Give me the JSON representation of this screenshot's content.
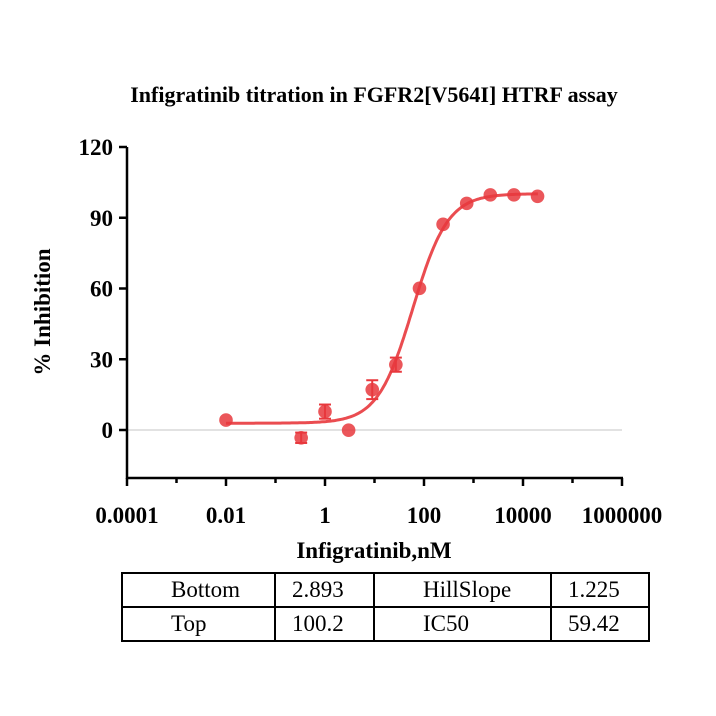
{
  "chart_data": {
    "type": "scatter",
    "title": "Infigratinib titration in FGFR2[V564I] HTRF assay",
    "xlabel": "Infigratinib,nM",
    "ylabel": "% Inhibition",
    "xscale": "log",
    "xlim": [
      0.0001,
      1000000
    ],
    "ylim": [
      -20,
      120
    ],
    "xticks": [
      "0.0001",
      "0.01",
      "1",
      "100",
      "10000",
      "1000000"
    ],
    "yticks": [
      "0",
      "30",
      "60",
      "90",
      "120"
    ],
    "grid": false,
    "color": "#e8383d",
    "points": [
      {
        "x": 0.01,
        "y": 4.2,
        "err": 0
      },
      {
        "x": 0.33,
        "y": -3.3,
        "err": 2.2
      },
      {
        "x": 1,
        "y": 7.8,
        "err": 3
      },
      {
        "x": 3,
        "y": -0.1,
        "err": 0
      },
      {
        "x": 9,
        "y": 17.1,
        "err": 4
      },
      {
        "x": 27,
        "y": 27.7,
        "err": 3
      },
      {
        "x": 81,
        "y": 60.1,
        "err": 0
      },
      {
        "x": 243,
        "y": 87.2,
        "err": 0
      },
      {
        "x": 729,
        "y": 96.1,
        "err": 0
      },
      {
        "x": 2187,
        "y": 99.7,
        "err": 0
      },
      {
        "x": 6561,
        "y": 99.7,
        "err": 0
      },
      {
        "x": 19683,
        "y": 99.1,
        "err": 0
      }
    ],
    "fit": {
      "model": "4PL",
      "bottom": 2.893,
      "top": 100.2,
      "ic50": 59.42,
      "hillslope": 1.225,
      "range": [
        0.01,
        20000
      ]
    }
  },
  "params_table": {
    "rows": [
      [
        {
          "label": "Bottom",
          "value": "2.893"
        },
        {
          "label": "HillSlope",
          "value": "1.225"
        }
      ],
      [
        {
          "label": "Top",
          "value": "100.2"
        },
        {
          "label": "IC50",
          "value": "59.42"
        }
      ]
    ]
  }
}
